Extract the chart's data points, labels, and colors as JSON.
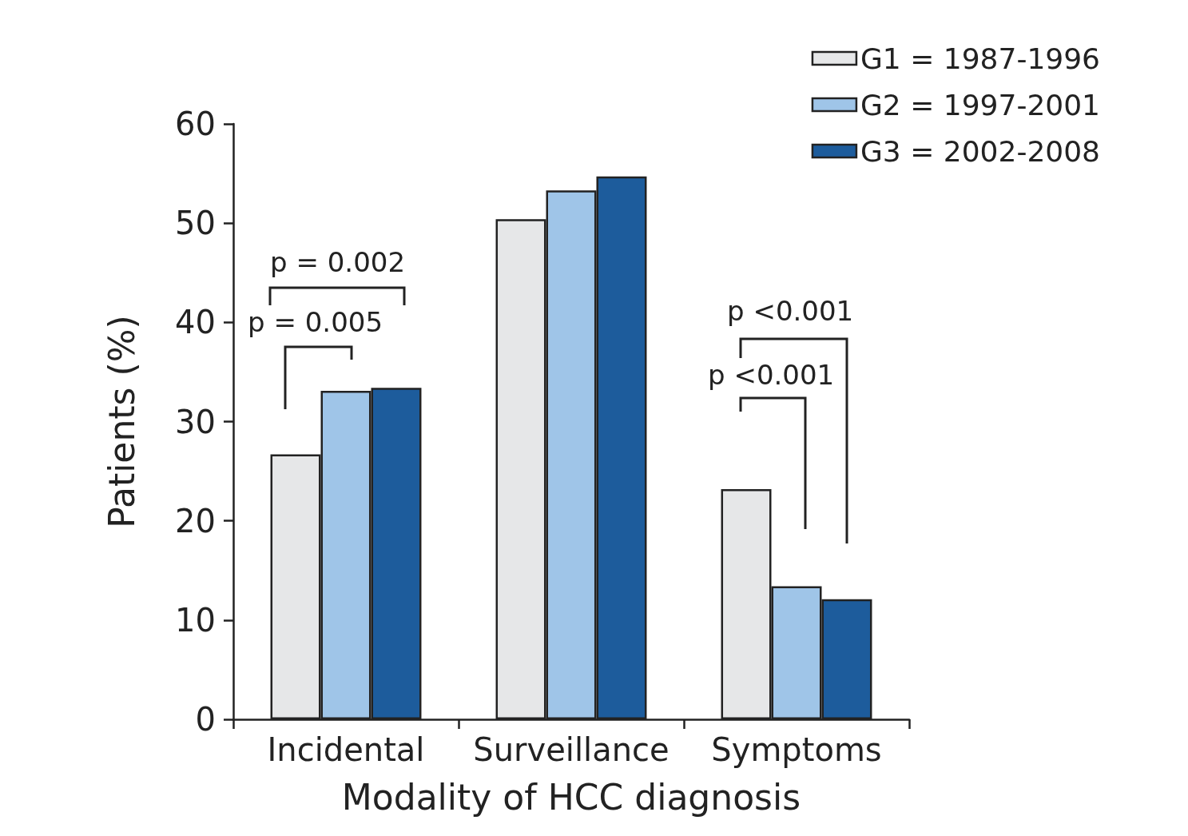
{
  "chart_data": {
    "type": "bar",
    "xlabel": "Modality of HCC diagnosis",
    "ylabel": "Patients (%)",
    "categories": [
      "Incidental",
      "Surveillance",
      "Symptoms"
    ],
    "series": [
      {
        "name": "G1 = 1987-1996",
        "color": "#e6e7e8",
        "values": [
          26.7,
          50.4,
          23.2
        ]
      },
      {
        "name": "G2 = 1997-2001",
        "color": "#9fc5e8",
        "values": [
          33.1,
          53.3,
          13.4
        ]
      },
      {
        "name": "G3 = 2002-2008",
        "color": "#1d5c9c",
        "values": [
          33.4,
          54.7,
          12.1
        ]
      }
    ],
    "ylim": [
      0,
      60
    ],
    "yticks": [
      0,
      10,
      20,
      30,
      40,
      50,
      60
    ],
    "grid": false,
    "legend": "top right",
    "annotations": [
      "p = 0.002",
      "p = 0.005",
      "p <0.001",
      "p <0.001"
    ]
  }
}
